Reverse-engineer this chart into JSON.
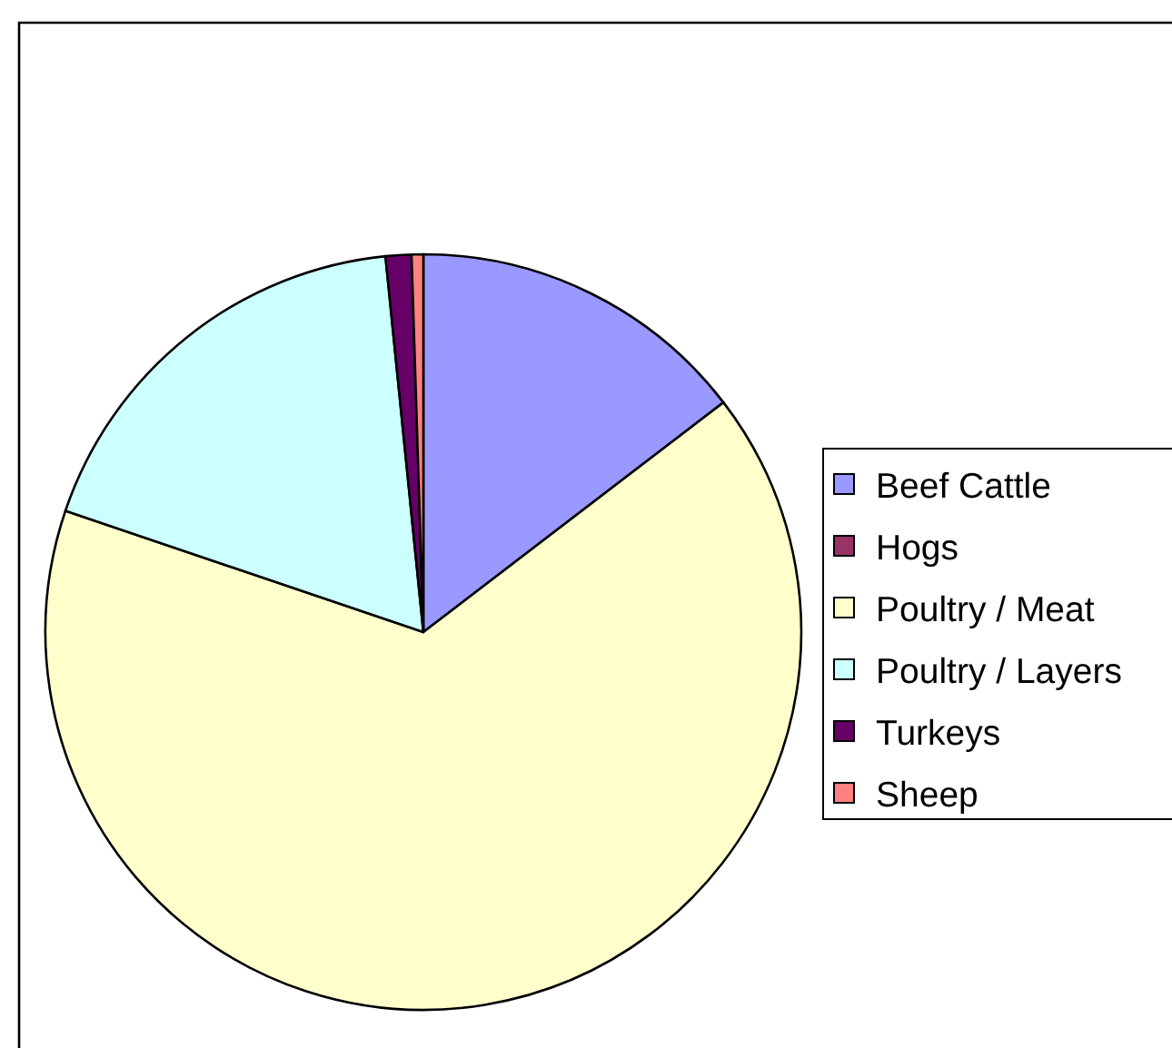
{
  "chart_data": {
    "type": "pie",
    "categories": [
      "Beef Cattle",
      "Hogs",
      "Poultry / Meat",
      "Poultry / Layers",
      "Turkeys",
      "Sheep"
    ],
    "values": [
      14.6,
      0,
      65.6,
      18.2,
      1.1,
      0.5
    ],
    "colors": [
      "#9999ff",
      "#993366",
      "#ffffcc",
      "#ccffff",
      "#660066",
      "#ff8080"
    ],
    "legend": "right"
  }
}
